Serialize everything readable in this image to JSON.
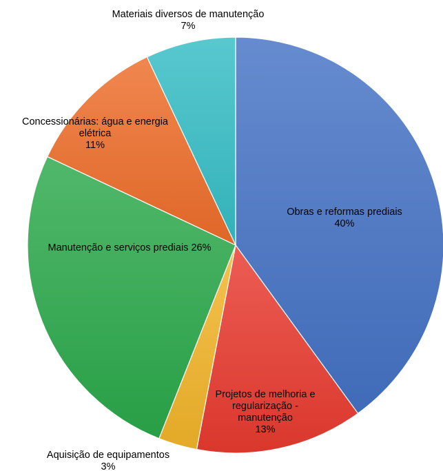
{
  "chart_data": {
    "type": "pie",
    "title": "",
    "slices": [
      {
        "label": "Obras e reformas prediais",
        "percent_label": "40%",
        "value": 40,
        "color": "#4472c4"
      },
      {
        "label": "Projetos de melhoria e regularização - manutenção",
        "percent_label": "13%",
        "value": 13,
        "color": "#e83a2f"
      },
      {
        "label": "Aquisição de equipamentos",
        "percent_label": "3%",
        "value": 3,
        "color": "#f2b42a"
      },
      {
        "label": "Manutenção e serviços prediais",
        "percent_label": "26%",
        "value": 26,
        "color": "#2ba84a"
      },
      {
        "label": "Concessionárias: água e energia elétrica",
        "percent_label": "11%",
        "value": 11,
        "color": "#ed6d2a"
      },
      {
        "label": "Materiais diversos de manutenção",
        "percent_label": "7%",
        "value": 7,
        "color": "#35bcc4"
      }
    ],
    "data_labels": [
      {
        "lines": [
          "Obras e reformas prediais",
          "40%"
        ]
      },
      {
        "lines": [
          "Projetos de melhoria e",
          "regularização -",
          "manutenção",
          "13%"
        ]
      },
      {
        "lines": [
          "Aquisição de equipamentos",
          "3%"
        ]
      },
      {
        "lines": [
          "Manutenção e serviços prediais 26%"
        ]
      },
      {
        "lines": [
          "Concessionárias: água e energia",
          "elétrica",
          "11%"
        ]
      },
      {
        "lines": [
          "Materiais diversos de manutenção",
          "7%"
        ]
      }
    ]
  }
}
